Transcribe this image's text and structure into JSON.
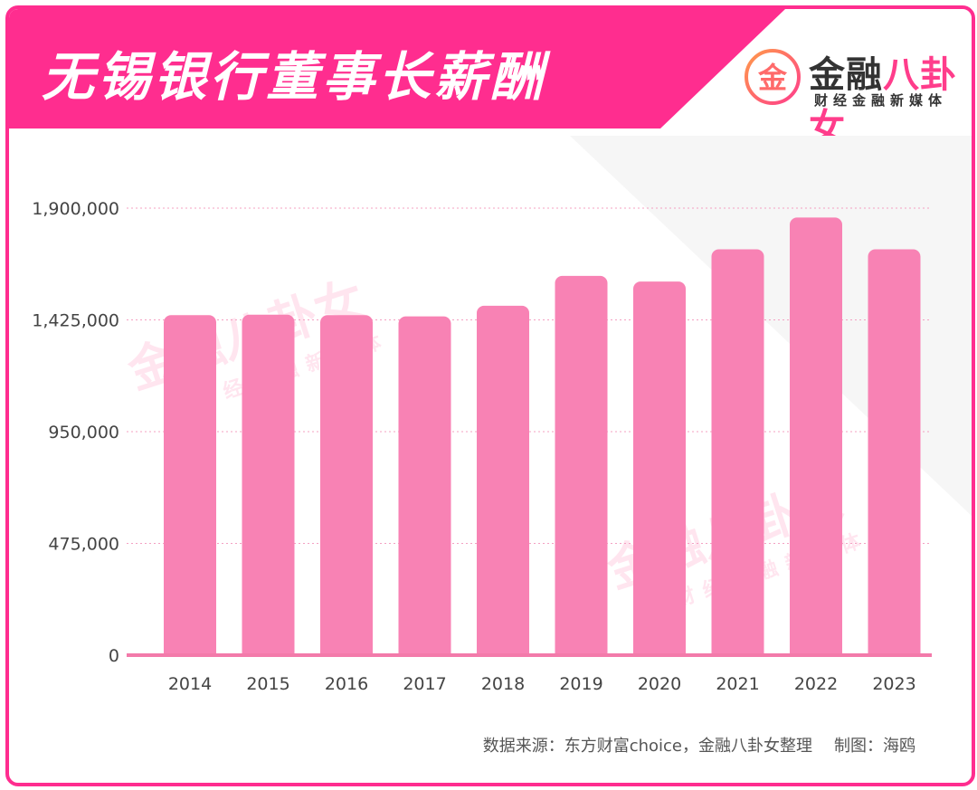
{
  "header": {
    "title": "无锡银行董事长薪酬",
    "brand_name_dark": "金融",
    "brand_name_pink": "八卦女",
    "brand_sub": "财经金融新媒体",
    "brand_logo_glyph": "金"
  },
  "watermark": {
    "main_dark": "金融",
    "main_pink": "八卦女",
    "sub": "财经金融新媒体"
  },
  "colors": {
    "accent": "#ff2d8f",
    "bar": "#f882b4",
    "axis": "#f37aaa",
    "grid": "#f4a0c2"
  },
  "chart_data": {
    "type": "bar",
    "title": "无锡银行董事长薪酬",
    "categories": [
      "2014",
      "2015",
      "2016",
      "2017",
      "2018",
      "2019",
      "2020",
      "2021",
      "2022",
      "2023"
    ],
    "values": [
      1445000,
      1447000,
      1445000,
      1440000,
      1485000,
      1612000,
      1588000,
      1725000,
      1860000,
      1725000
    ],
    "ylim": [
      0,
      1900000
    ],
    "yticks": [
      0,
      475000,
      950000,
      1425000,
      1900000
    ],
    "ytick_labels": [
      "0",
      "475,000",
      "950,000",
      "1,425,000",
      "1,900,000"
    ],
    "xlabel": "",
    "ylabel": "",
    "grid": true
  },
  "footer": {
    "source": "数据来源：东方财富choice，金融八卦女整理",
    "maker": "制图：海鸥"
  }
}
